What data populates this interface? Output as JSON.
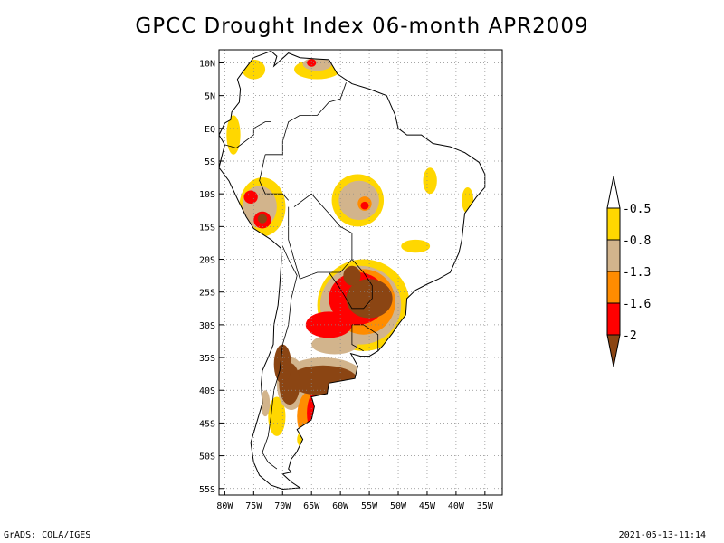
{
  "title": "GPCC Drought Index 06-month APR2009",
  "footer": {
    "left": "GrADS: COLA/IGES",
    "right": "2021-05-13-11:14"
  },
  "map": {
    "lon_range": [
      -81,
      -32
    ],
    "lat_range": [
      -56,
      12
    ],
    "lat_ticks": [
      {
        "value": 10,
        "label": "10N"
      },
      {
        "value": 5,
        "label": "5N"
      },
      {
        "value": 0,
        "label": "EQ"
      },
      {
        "value": -5,
        "label": "5S"
      },
      {
        "value": -10,
        "label": "10S"
      },
      {
        "value": -15,
        "label": "15S"
      },
      {
        "value": -20,
        "label": "20S"
      },
      {
        "value": -25,
        "label": "25S"
      },
      {
        "value": -30,
        "label": "30S"
      },
      {
        "value": -35,
        "label": "35S"
      },
      {
        "value": -40,
        "label": "40S"
      },
      {
        "value": -45,
        "label": "45S"
      },
      {
        "value": -50,
        "label": "50S"
      },
      {
        "value": -55,
        "label": "55S"
      }
    ],
    "lon_ticks": [
      {
        "value": -80,
        "label": "80W"
      },
      {
        "value": -75,
        "label": "75W"
      },
      {
        "value": -70,
        "label": "70W"
      },
      {
        "value": -65,
        "label": "65W"
      },
      {
        "value": -60,
        "label": "60W"
      },
      {
        "value": -55,
        "label": "55W"
      },
      {
        "value": -50,
        "label": "50W"
      },
      {
        "value": -45,
        "label": "45W"
      },
      {
        "value": -40,
        "label": "40W"
      },
      {
        "value": -35,
        "label": "35W"
      }
    ],
    "grid": "dotted"
  },
  "legend": {
    "levels": [
      {
        "label": "-0.5",
        "color": "#ffd700"
      },
      {
        "label": "-0.8",
        "color": "#d2b48c"
      },
      {
        "label": "-1.3",
        "color": "#ff8c00"
      },
      {
        "label": "-1.6",
        "color": "#ff0000"
      },
      {
        "label": "-2",
        "color": "#8b4513"
      }
    ],
    "colors": [
      "#ffffff",
      "#ffd700",
      "#d2b48c",
      "#ff8c00",
      "#ff0000",
      "#8b4513"
    ]
  }
}
